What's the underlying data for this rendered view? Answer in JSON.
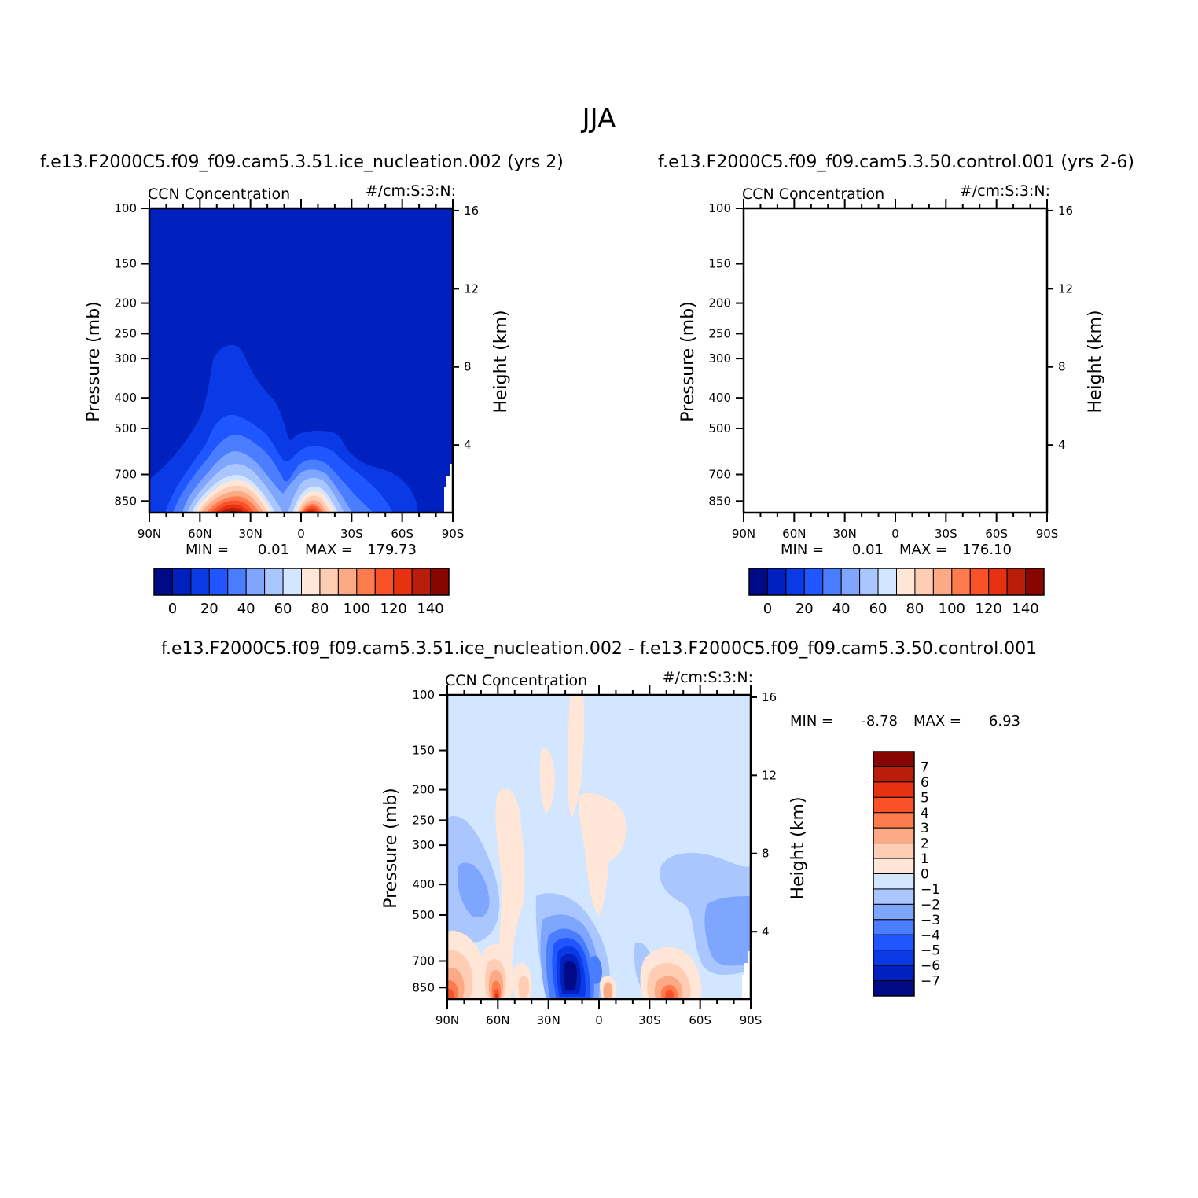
{
  "figure": {
    "title": "JJA"
  },
  "chart_data": [
    {
      "type": "heatmap",
      "panel_title": "f.e13.F2000C5.f09_f09.cam5.3.51.ice_nucleation.002 (yrs 2)",
      "left_label": "CCN Concentration",
      "right_label": "#/cm:S:3:N:",
      "xlabel": "",
      "ylabel": "Pressure (mb)",
      "y2label": "Height (km)",
      "x_tick_labels": [
        "90N",
        "60N",
        "30N",
        "0",
        "30S",
        "60S",
        "90S"
      ],
      "y_tick_labels": [
        "100",
        "150",
        "200",
        "250",
        "300",
        "400",
        "500",
        "700",
        "850"
      ],
      "y2_tick_labels": [
        "16",
        "12",
        "8",
        "4"
      ],
      "ylim": [
        100,
        925
      ],
      "stats": {
        "min_label": "MIN =",
        "min_value": "0.01",
        "max_label": "MAX =",
        "max_value": "179.73"
      },
      "colorbar": {
        "orientation": "horizontal",
        "levels": [
          "0",
          "20",
          "40",
          "60",
          "80",
          "100",
          "120",
          "140"
        ]
      }
    },
    {
      "type": "heatmap",
      "panel_title": "f.e13.F2000C5.f09_f09.cam5.3.50.control.001 (yrs 2-6)",
      "left_label": "CCN Concentration",
      "right_label": "#/cm:S:3:N:",
      "xlabel": "",
      "ylabel": "Pressure (mb)",
      "y2label": "Height (km)",
      "x_tick_labels": [
        "90N",
        "60N",
        "30N",
        "0",
        "30S",
        "60S",
        "90S"
      ],
      "y_tick_labels": [
        "100",
        "150",
        "200",
        "250",
        "300",
        "400",
        "500",
        "700",
        "850"
      ],
      "y2_tick_labels": [
        "16",
        "12",
        "8",
        "4"
      ],
      "ylim": [
        100,
        925
      ],
      "stats": {
        "min_label": "MIN =",
        "min_value": "0.01",
        "max_label": "MAX =",
        "max_value": "176.10"
      },
      "colorbar": {
        "orientation": "horizontal",
        "levels": [
          "0",
          "20",
          "40",
          "60",
          "80",
          "100",
          "120",
          "140"
        ]
      }
    },
    {
      "type": "heatmap",
      "panel_title": "f.e13.F2000C5.f09_f09.cam5.3.51.ice_nucleation.002 - f.e13.F2000C5.f09_f09.cam5.3.50.control.001",
      "left_label": "CCN Concentration",
      "right_label": "#/cm:S:3:N:",
      "xlabel": "",
      "ylabel": "Pressure (mb)",
      "y2label": "Height (km)",
      "x_tick_labels": [
        "90N",
        "60N",
        "30N",
        "0",
        "30S",
        "60S",
        "90S"
      ],
      "y_tick_labels": [
        "100",
        "150",
        "200",
        "250",
        "300",
        "400",
        "500",
        "700",
        "850"
      ],
      "y2_tick_labels": [
        "16",
        "12",
        "8",
        "4"
      ],
      "ylim": [
        100,
        925
      ],
      "stats": {
        "min_label": "MIN =",
        "min_value": "-8.78",
        "max_label": "MAX =",
        "max_value": "6.93"
      },
      "colorbar": {
        "orientation": "vertical",
        "levels": [
          "7",
          "6",
          "5",
          "4",
          "3",
          "2",
          "1",
          "0",
          "-1",
          "-2",
          "-3",
          "-4",
          "-5",
          "-6",
          "-7"
        ]
      }
    }
  ],
  "palette": [
    "#000a87",
    "#0021bd",
    "#0a3ae6",
    "#1f56ff",
    "#4a7dff",
    "#7ea6ff",
    "#aac6ff",
    "#d3e6ff",
    "#ffe6d6",
    "#ffccb4",
    "#fcaa86",
    "#fe7b4e",
    "#fa5228",
    "#e73211",
    "#b91e0a",
    "#880600"
  ]
}
